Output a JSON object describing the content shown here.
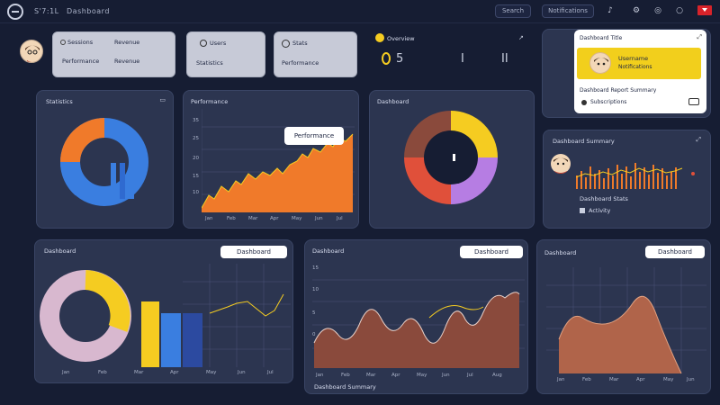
{
  "nav": {
    "brand": "S'7:1L",
    "title": "Dashboard",
    "pill_1": "Search",
    "pill_2": "Notifications"
  },
  "stat_cards": [
    {
      "title": "Sessions",
      "value_a": "Revenue",
      "value_b": "Performance"
    },
    {
      "title": "Users",
      "value_a": "Statistics"
    },
    {
      "title": "Stats",
      "value_a": "Performance"
    }
  ],
  "top_right_stat": {
    "title": "Overview",
    "marks": [
      "5",
      "I",
      "II"
    ]
  },
  "profile_card": {
    "heading": "Dashboard Title",
    "name": "Username",
    "subtitle": "Notifications",
    "footer": "Dashboard Report Summary",
    "footer_2": "Subscriptions"
  },
  "donut_card": {
    "title": "Statistics"
  },
  "area_card": {
    "title": "Performance",
    "tooltip": "Performance",
    "y_ticks": [
      "35",
      "25",
      "20",
      "15",
      "10"
    ],
    "x_ticks": [
      "Jan",
      "Feb",
      "Mar",
      "Apr",
      "May",
      "Jun",
      "Jul"
    ]
  },
  "ring_card": {
    "title": "Dashboard"
  },
  "activity_card": {
    "title": "Dashboard Summary",
    "footer": "Dashboard Stats",
    "footer_2": "Activity"
  },
  "bottom_left_card": {
    "title": "Dashboard",
    "btn": "Dashboard",
    "x_ticks": [
      "Jan",
      "Feb",
      "Mar",
      "Apr",
      "May",
      "Jun",
      "Jul"
    ]
  },
  "bottom_mid_card": {
    "title": "Dashboard",
    "btn": "Dashboard",
    "y_ticks": [
      "15",
      "10",
      "5",
      "0"
    ],
    "x_ticks": [
      "Jan",
      "Feb",
      "Mar",
      "Apr",
      "May",
      "Jun",
      "Jul",
      "Aug"
    ],
    "footer": "Dashboard Summary"
  },
  "bottom_right_card": {
    "title": "Dashboard",
    "btn": "Dashboard",
    "x_ticks": [
      "Jan",
      "Feb",
      "Mar",
      "Apr",
      "May",
      "Jun"
    ]
  },
  "colors": {
    "background": "#161d33",
    "card": "#2c3550",
    "orange": "#f07a2a",
    "blue": "#3a7ee0",
    "yellow": "#f5cc21",
    "purple": "#b67de3",
    "brown": "#8a4a3c",
    "red": "#e0503a"
  }
}
